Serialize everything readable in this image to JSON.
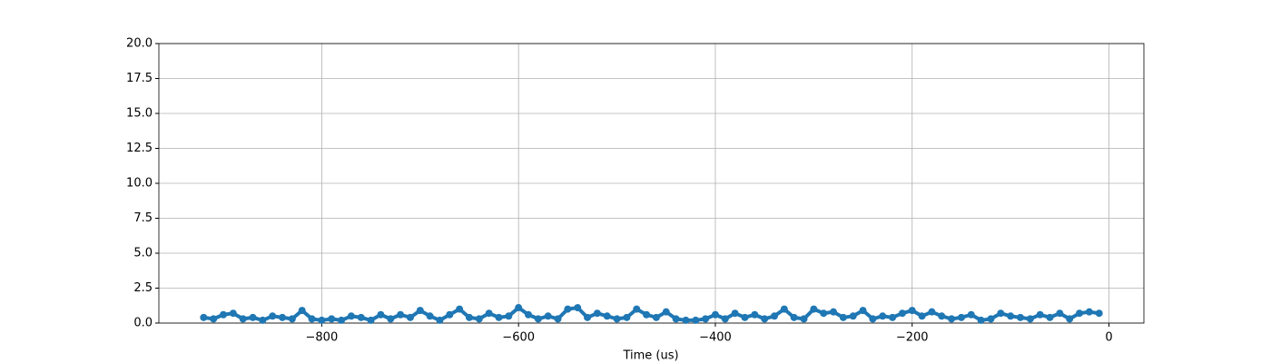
{
  "chart_data": {
    "type": "line",
    "xlabel": "Time (us)",
    "x": [
      -920,
      -910,
      -900,
      -890,
      -880,
      -870,
      -860,
      -850,
      -840,
      -830,
      -820,
      -810,
      -800,
      -790,
      -780,
      -770,
      -760,
      -750,
      -740,
      -730,
      -720,
      -710,
      -700,
      -690,
      -680,
      -670,
      -660,
      -650,
      -640,
      -630,
      -620,
      -610,
      -600,
      -590,
      -580,
      -570,
      -560,
      -550,
      -540,
      -530,
      -520,
      -510,
      -500,
      -490,
      -480,
      -470,
      -460,
      -450,
      -440,
      -430,
      -420,
      -410,
      -400,
      -390,
      -380,
      -370,
      -360,
      -350,
      -340,
      -330,
      -320,
      -310,
      -300,
      -290,
      -280,
      -270,
      -260,
      -250,
      -240,
      -230,
      -220,
      -210,
      -200,
      -190,
      -180,
      -170,
      -160,
      -150,
      -140,
      -130,
      -120,
      -110,
      -100,
      -90,
      -80,
      -70,
      -60,
      -50,
      -40,
      -30,
      -20,
      -10
    ],
    "series": [
      {
        "color": "#1f77b4",
        "values": [
          0.4,
          0.3,
          0.6,
          0.7,
          0.3,
          0.4,
          0.2,
          0.5,
          0.4,
          0.3,
          0.9,
          0.3,
          0.2,
          0.3,
          0.2,
          0.5,
          0.4,
          0.2,
          0.6,
          0.3,
          0.6,
          0.4,
          0.9,
          0.5,
          0.2,
          0.6,
          1.0,
          0.4,
          0.3,
          0.7,
          0.4,
          0.5,
          1.1,
          0.6,
          0.3,
          0.5,
          0.3,
          1.0,
          1.1,
          0.4,
          0.7,
          0.5,
          0.3,
          0.4,
          1.0,
          0.6,
          0.4,
          0.8,
          0.3,
          0.2,
          0.2,
          0.3,
          0.6,
          0.3,
          0.7,
          0.4,
          0.6,
          0.3,
          0.5,
          1.0,
          0.4,
          0.3,
          1.0,
          0.7,
          0.8,
          0.4,
          0.5,
          0.9,
          0.3,
          0.5,
          0.4,
          0.7,
          0.9,
          0.5,
          0.8,
          0.5,
          0.3,
          0.4,
          0.6,
          0.2,
          0.3,
          0.7,
          0.5,
          0.4,
          0.3,
          0.6,
          0.4,
          0.7,
          0.3,
          0.7,
          0.8,
          0.7
        ]
      }
    ],
    "xlim": [
      -965.5,
      35.5
    ],
    "xticks": [
      {
        "value": -800,
        "label": "−800"
      },
      {
        "value": -600,
        "label": "−600"
      },
      {
        "value": -400,
        "label": "−400"
      },
      {
        "value": -200,
        "label": "−200"
      },
      0
    ],
    "ylim": [
      0,
      20
    ],
    "yticks": [
      {
        "value": 0,
        "label": "0.0"
      },
      2.5,
      {
        "value": 5,
        "label": "5.0"
      },
      7.5,
      {
        "value": 10,
        "label": "10.0"
      },
      12.5,
      {
        "value": 15,
        "label": "15.0"
      },
      17.5,
      {
        "value": 20,
        "label": "20.0"
      }
    ],
    "grid": true
  }
}
